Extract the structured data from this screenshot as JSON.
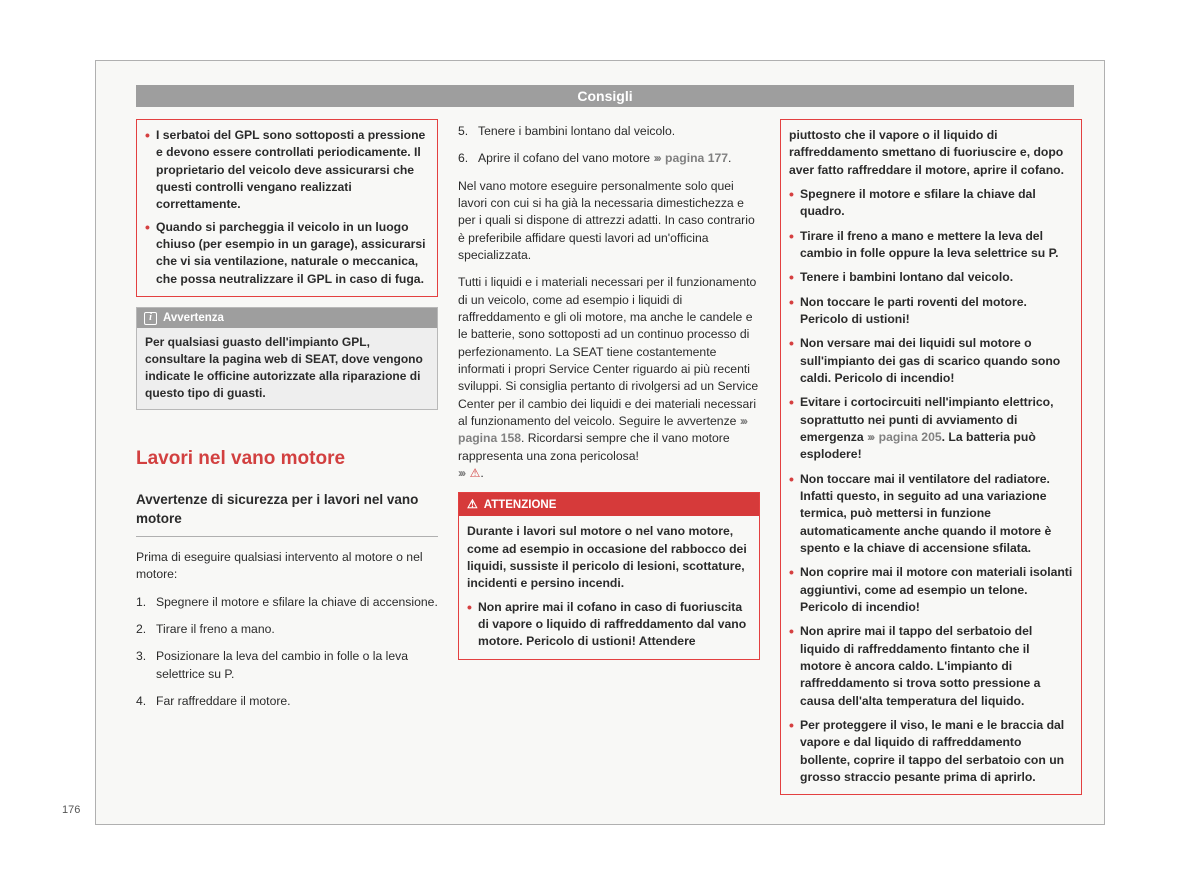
{
  "header": {
    "title": "Consigli"
  },
  "page_number": "176",
  "col1": {
    "redbox": {
      "bullets": [
        "I serbatoi del GPL sono sottoposti a pressione e devono essere controllati periodicamente. Il proprietario del veicolo deve assicurarsi che questi controlli vengano realizzati correttamente.",
        "Quando si parcheggia il veicolo in un luogo chiuso (per esempio in un garage), assicurarsi che vi sia ventilazione, naturale o meccanica, che possa neutralizzare il GPL in caso di fuga."
      ]
    },
    "graybox": {
      "heading": "Avvertenza",
      "body": "Per qualsiasi guasto dell'impianto GPL, consultare la pagina web di SEAT, dove vengono indicate le officine autorizzate alla riparazione di questo tipo di guasti."
    },
    "section_title": "Lavori nel vano motore",
    "subtitle": "Avvertenze di sicurezza per i lavori nel vano motore",
    "intro": "Prima di eseguire qualsiasi intervento al motore o nel motore:",
    "steps": [
      "Spegnere il motore e sfilare la chiave di accensione.",
      "Tirare il freno a mano.",
      "Posizionare la leva del cambio in folle o la leva selettrice su P.",
      "Far raffreddare il motore."
    ]
  },
  "col2": {
    "step5": "Tenere i bambini lontano dal veicolo.",
    "step6_a": "Aprire il cofano del vano motore ",
    "step6_ref": "pagina 177",
    "step6_b": ".",
    "para1": "Nel vano motore eseguire personalmente solo quei lavori con cui si ha già la necessaria dimestichezza e per i quali si dispone di attrezzi adatti. In caso contrario è preferibile affidare questi lavori ad un'officina specializzata.",
    "para2_a": "Tutti i liquidi e i materiali necessari per il funzionamento di un veicolo, come ad esempio i liquidi di raffreddamento e gli oli motore, ma anche le candele e le batterie, sono sottoposti ad un continuo processo di perfezionamento. La SEAT tiene costantemente informati i propri Service Center riguardo ai più recenti sviluppi. Si consiglia pertanto di rivolgersi ad un Service Center per il cambio dei liquidi e dei materiali necessari al funzionamento del veicolo. Seguire le avvertenze ",
    "para2_ref": "pagina 158",
    "para2_b": ". Ricordarsi sempre che il vano motore rappresenta una zona pericolosa! ",
    "warnbox": {
      "heading": "ATTENZIONE",
      "intro": "Durante i lavori sul motore o nel vano motore, come ad esempio in occasione del rabbocco dei liquidi, sussiste il pericolo di lesioni, scottature, incidenti e persino incendi.",
      "bullets": [
        "Non aprire mai il cofano in caso di fuoriuscita di vapore o liquido di raffreddamento dal vano motore. Pericolo di ustioni! Attendere"
      ]
    }
  },
  "col3": {
    "cont": "piuttosto che il vapore o il liquido di raffreddamento smettano di fuoriuscire e, dopo aver fatto raffreddare il motore, aprire il cofano.",
    "bullets": [
      "Spegnere il motore e sfilare la chiave dal quadro.",
      "Tirare il freno a mano e mettere la leva del cambio in folle oppure la leva selettrice su P.",
      "Tenere i bambini lontano dal veicolo.",
      "Non toccare le parti roventi del motore. Pericolo di ustioni!",
      "Non versare mai dei liquidi sul motore o sull'impianto dei gas di scarico quando sono caldi. Pericolo di incendio!"
    ],
    "bullet_ref_a": "Evitare i cortocircuiti nell'impianto elettrico, soprattutto nei punti di avviamento di emergenza ",
    "bullet_ref_page": "pagina 205",
    "bullet_ref_b": ". La batteria può esplodere!",
    "bullets2": [
      "Non toccare mai il ventilatore del radiatore. Infatti questo, in seguito ad una variazione termica, può mettersi in funzione automaticamente anche quando il motore è spento e la chiave di accensione sfilata.",
      "Non coprire mai il motore con materiali isolanti aggiuntivi, come ad esempio un telone. Pericolo di incendio!",
      "Non aprire mai il tappo del serbatoio del liquido di raffreddamento fintanto che il motore è ancora caldo. L'impianto di raffreddamento si trova sotto pressione a causa dell'alta temperatura del liquido.",
      "Per proteggere il viso, le mani e le braccia dal vapore e dal liquido di raffreddamento bollente, coprire il tappo del serbatoio con un grosso straccio pesante prima di aprirlo."
    ]
  }
}
